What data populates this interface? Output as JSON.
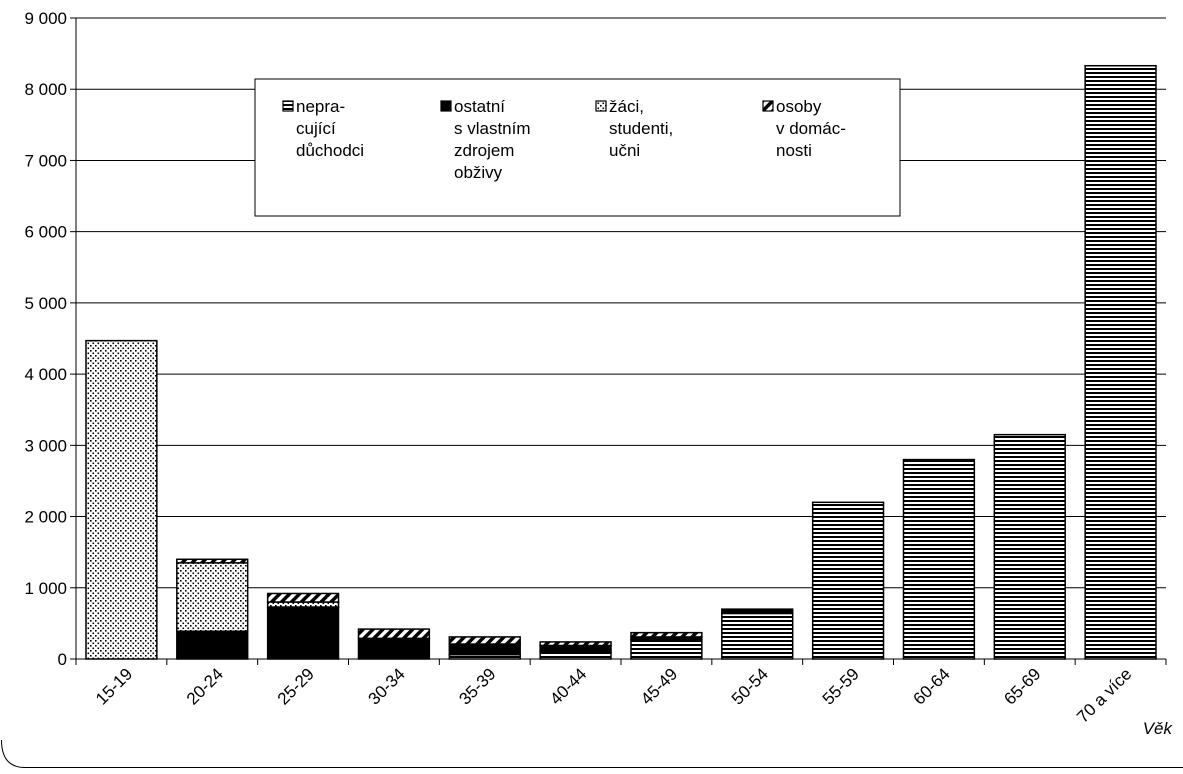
{
  "chart_data": {
    "type": "bar",
    "stacked": true,
    "categories": [
      "15-19",
      "20-24",
      "25-29",
      "30-34",
      "35-39",
      "40-44",
      "45-49",
      "50-54",
      "55-59",
      "60-64",
      "65-69",
      "70 a více"
    ],
    "series": [
      {
        "name": "nepra- cující důchodci",
        "legend_lines": [
          "nepra-",
          "cující",
          "důchodci"
        ],
        "pattern": "horizontal-stripes",
        "values": [
          0,
          0,
          0,
          0,
          60,
          100,
          270,
          640,
          2200,
          2800,
          3150,
          8330
        ]
      },
      {
        "name": "ostatní s vlastním zdrojem obživy",
        "legend_lines": [
          "ostatní",
          "s vlastním",
          "zdrojem",
          "obživy"
        ],
        "pattern": "solid-black",
        "values": [
          0,
          390,
          730,
          290,
          150,
          90,
          40,
          60,
          0,
          0,
          0,
          0
        ]
      },
      {
        "name": "žáci, studenti, učni",
        "legend_lines": [
          "žáci,",
          "studenti,",
          "učni"
        ],
        "pattern": "dots",
        "values": [
          4470,
          960,
          70,
          0,
          0,
          0,
          0,
          0,
          0,
          0,
          0,
          0
        ]
      },
      {
        "name": "osoby v domácnosti",
        "legend_lines": [
          "osoby",
          "v domác-",
          "nosti"
        ],
        "pattern": "diagonal-stripes",
        "values": [
          0,
          50,
          120,
          130,
          100,
          50,
          60,
          0,
          0,
          0,
          0,
          0
        ]
      }
    ],
    "y_ticks": [
      "0",
      "1 000",
      "2 000",
      "3 000",
      "4 000",
      "5 000",
      "6 000",
      "7 000",
      "8 000",
      "9 000"
    ],
    "ylim": [
      0,
      9000
    ],
    "xlabel": "Věk",
    "ylabel": "",
    "title": "",
    "grid": true,
    "legend_position": "top-center"
  }
}
